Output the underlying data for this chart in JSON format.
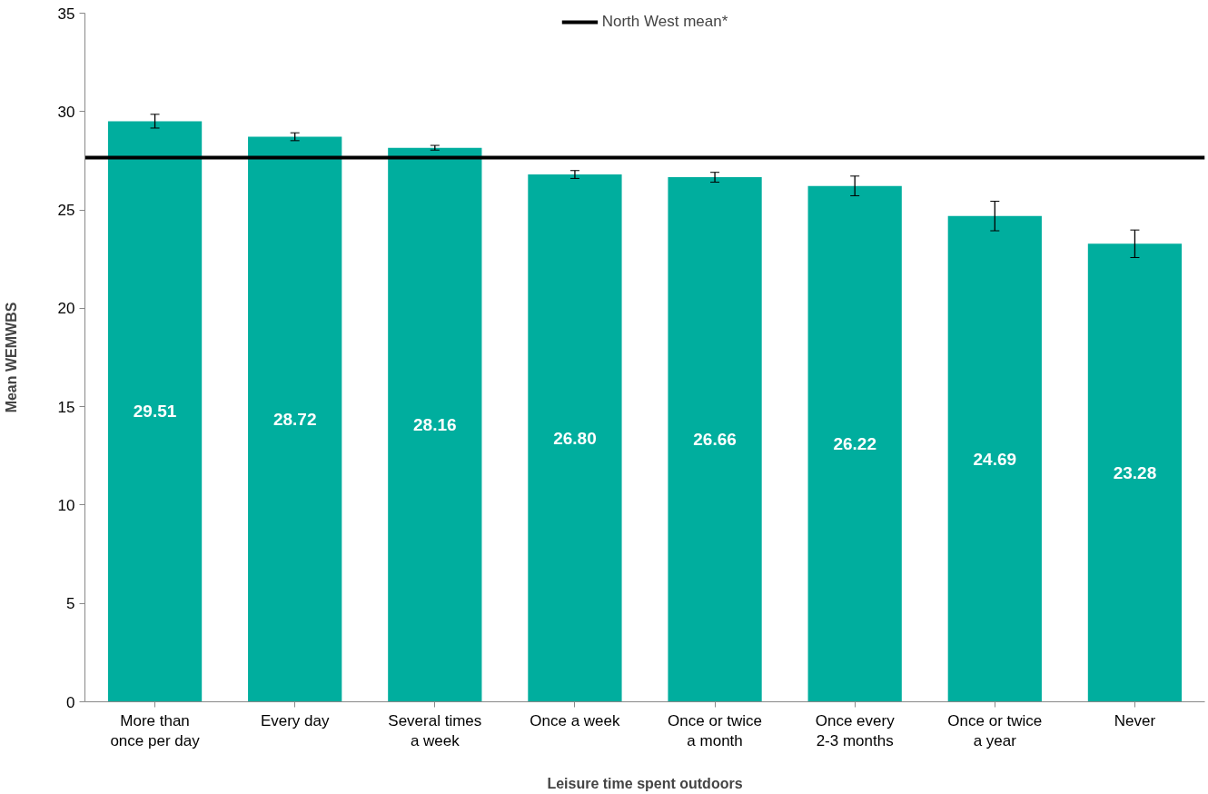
{
  "chart_data": {
    "type": "bar",
    "xlabel": "Leisure time spent outdoors",
    "ylabel": "Mean WEMWBS",
    "categories": [
      "More than once per day",
      "Every day",
      "Several times a week",
      "Once a week",
      "Once or twice a month",
      "Once every 2-3 months",
      "Once or twice a year",
      "Never"
    ],
    "values": [
      29.51,
      28.72,
      28.16,
      26.8,
      26.66,
      26.22,
      24.69,
      23.28
    ],
    "value_labels": [
      "29.51",
      "28.72",
      "28.16",
      "26.80",
      "26.66",
      "26.22",
      "24.69",
      "23.28"
    ],
    "errors": [
      0.35,
      0.2,
      0.12,
      0.2,
      0.25,
      0.5,
      0.75,
      0.7
    ],
    "color": "#00ae9e",
    "ylim": [
      0,
      35
    ],
    "yticks": [
      0,
      5,
      10,
      15,
      20,
      25,
      30,
      35
    ],
    "ref_lines": [
      {
        "axis": "y",
        "value": 27.66,
        "label": "North West mean*",
        "color": "#000000"
      }
    ],
    "legend": "top",
    "grid": false
  }
}
